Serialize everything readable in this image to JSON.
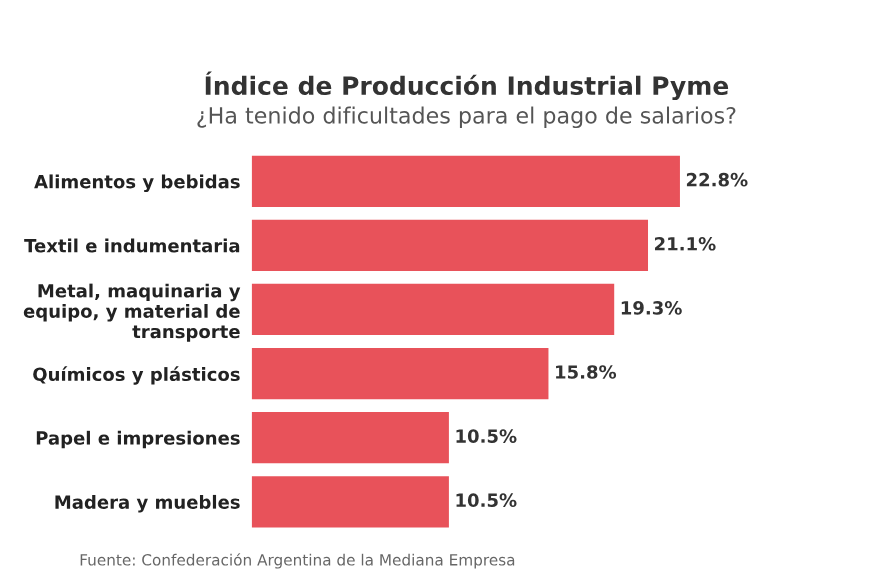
{
  "chart_data": {
    "type": "bar",
    "orientation": "horizontal",
    "title": "Índice de Producción Industrial Pyme",
    "subtitle": "¿Ha tenido dificultades para el pago de salarios?",
    "categories": [
      "Alimentos y bebidas",
      "Textil e indumentaria",
      "Metal, maquinaria y\nequipo, y material de\ntransporte",
      "Químicos y plásticos",
      "Papel e impresiones",
      "Madera y muebles"
    ],
    "values": [
      22.8,
      21.1,
      19.3,
      15.8,
      10.5,
      10.5
    ],
    "value_labels": [
      "22.8%",
      "21.1%",
      "19.3%",
      "15.8%",
      "10.5%",
      "10.5%"
    ],
    "color": "#e8525a",
    "grid": false,
    "legend": false,
    "tick_labels": "y",
    "annotations": [
      "Fuente: Confederación Argentina de la Mediana Empresa"
    ]
  }
}
